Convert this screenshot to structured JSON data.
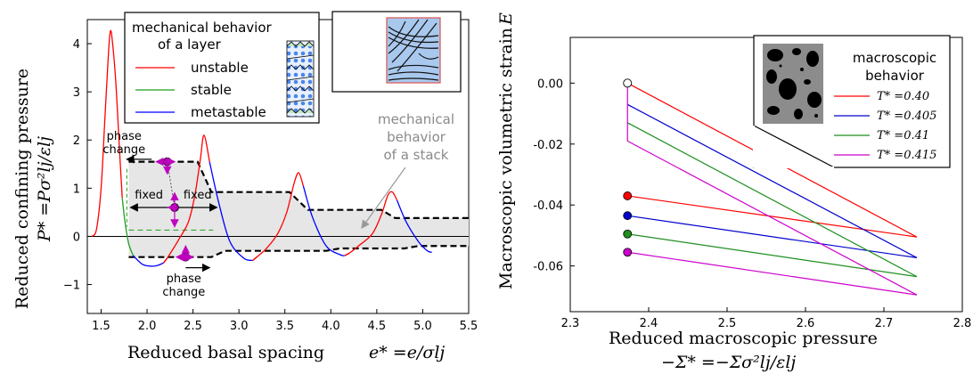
{
  "chart_data": [
    {
      "type": "line",
      "xlabel": "Reduced basal spacing",
      "xlabel_math": "e* =e/σlj",
      "ylabel_line1": "Reduced confining pressure",
      "ylabel_line2": "P* =Pσ²lj/εlj",
      "xlim": [
        1.35,
        5.5
      ],
      "ylim": [
        -1.6,
        4.5
      ],
      "xticks": [
        "1.5",
        "2.0",
        "2.5",
        "3.0",
        "3.5",
        "4.0",
        "4.5",
        "5.0",
        "5.5"
      ],
      "xtick_values": [
        1.5,
        2.0,
        2.5,
        3.0,
        3.5,
        4.0,
        4.5,
        5.0,
        5.5
      ],
      "yticks": [
        "−1",
        "0",
        "1",
        "2",
        "3",
        "4"
      ],
      "ytick_values": [
        -1,
        0,
        1,
        2,
        3,
        4
      ],
      "legend": {
        "title_line1": "mechanical behavior",
        "title_line2": "of a layer",
        "entries": [
          "unstable",
          "stable",
          "metastable"
        ],
        "colors": [
          "#ff0000",
          "#1f9e1f",
          "#0000ff"
        ],
        "placement": "top-center"
      },
      "inset_label": [
        "mechanical",
        "behavior",
        "of a stack"
      ],
      "annotations": {
        "phase_change_top": [
          "phase",
          "change"
        ],
        "phase_change_bottom": [
          "phase",
          "change"
        ],
        "fixed_left": "fixed",
        "fixed_right": "fixed"
      },
      "series": [
        {
          "name": "unstable",
          "color": "#ff0000",
          "x": [
            1.4,
            1.45,
            1.5,
            1.54,
            1.58,
            1.6,
            1.62,
            1.66,
            1.7,
            1.73,
            2.18,
            2.22,
            2.27,
            2.35,
            2.45,
            2.52,
            2.58,
            2.62,
            2.68,
            3.15,
            3.2,
            3.3,
            3.42,
            3.52,
            3.6,
            3.65,
            3.7,
            4.15,
            4.2,
            4.3,
            4.45,
            4.55,
            4.62,
            4.67,
            4.72
          ],
          "y": [
            0.0,
            0.15,
            1.0,
            2.4,
            3.8,
            4.25,
            4.1,
            3.2,
            1.8,
            0.8,
            -0.55,
            -0.45,
            -0.3,
            -0.05,
            0.3,
            0.85,
            1.6,
            2.1,
            1.55,
            -0.5,
            -0.42,
            -0.25,
            0.05,
            0.5,
            1.1,
            1.32,
            1.05,
            -0.4,
            -0.35,
            -0.2,
            0.05,
            0.45,
            0.85,
            0.92,
            0.75
          ]
        },
        {
          "name": "stable",
          "color": "#1f9e1f",
          "x": [
            1.73,
            1.76,
            1.8,
            1.85
          ],
          "y": [
            0.8,
            0.3,
            -0.15,
            -0.4
          ]
        },
        {
          "name": "metastable",
          "color": "#0000ff",
          "x": [
            1.85,
            1.95,
            2.05,
            2.12,
            2.18,
            2.68,
            2.78,
            2.9,
            3.05,
            3.15,
            3.7,
            3.8,
            3.95,
            4.1,
            4.15,
            4.72,
            4.82,
            4.95,
            5.05,
            5.1
          ],
          "y": [
            -0.4,
            -0.58,
            -0.62,
            -0.6,
            -0.55,
            1.55,
            0.7,
            -0.1,
            -0.45,
            -0.5,
            1.05,
            0.4,
            -0.2,
            -0.38,
            -0.4,
            0.75,
            0.3,
            -0.1,
            -0.3,
            -0.33
          ]
        }
      ],
      "stack_envelope": {
        "upper": [
          [
            1.8,
            1.55
          ],
          [
            2.55,
            1.55
          ],
          [
            2.7,
            0.92
          ],
          [
            3.55,
            0.92
          ],
          [
            3.75,
            0.55
          ],
          [
            4.55,
            0.55
          ],
          [
            4.7,
            0.38
          ],
          [
            5.5,
            0.38
          ]
        ],
        "lower": [
          [
            1.8,
            -0.43
          ],
          [
            2.7,
            -0.43
          ],
          [
            2.85,
            -0.3
          ],
          [
            3.95,
            -0.3
          ],
          [
            4.1,
            -0.25
          ],
          [
            4.8,
            -0.25
          ],
          [
            4.95,
            -0.2
          ],
          [
            5.5,
            -0.2
          ]
        ]
      }
    },
    {
      "type": "line",
      "xlabel": "Reduced macroscopic pressure",
      "xlabel_math": "−Σ* =−Σσ²lj/εlj",
      "ylabel": "Macroscopic volumetric strain",
      "ylabel_var": "E",
      "xlim": [
        2.3,
        2.8
      ],
      "ylim": [
        -0.075,
        0.015
      ],
      "xticks": [
        "2.3",
        "2.4",
        "2.5",
        "2.6",
        "2.7",
        "2.8"
      ],
      "xtick_values": [
        2.3,
        2.4,
        2.5,
        2.6,
        2.7,
        2.8
      ],
      "yticks": [
        "0.00",
        "-0.02",
        "-0.04",
        "-0.06"
      ],
      "ytick_values": [
        0.0,
        -0.02,
        -0.04,
        -0.06
      ],
      "legend": {
        "title_line1": "macroscopic",
        "title_line2": "behavior",
        "placement": "top-right"
      },
      "series": [
        {
          "name": "T* =0.40",
          "color": "#ff0000",
          "start": [
            2.373,
            0.0
          ],
          "x": [
            2.373,
            2.742
          ],
          "y": [
            -0.037,
            -0.0505
          ],
          "marker_y": -0.037
        },
        {
          "name": "T* =0.405",
          "color": "#0000cc",
          "start": [
            2.373,
            -0.007
          ],
          "x": [
            2.373,
            2.742
          ],
          "y": [
            -0.0435,
            -0.0573
          ],
          "marker_y": -0.0435
        },
        {
          "name": "T* =0.41",
          "color": "#1f8f1f",
          "start": [
            2.373,
            -0.013
          ],
          "x": [
            2.373,
            2.742
          ],
          "y": [
            -0.0495,
            -0.0635
          ],
          "marker_y": -0.0495
        },
        {
          "name": "T* =0.415",
          "color": "#cc00cc",
          "start": [
            2.373,
            -0.019
          ],
          "x": [
            2.373,
            2.742
          ],
          "y": [
            -0.0555,
            -0.0695
          ],
          "marker_y": -0.0555
        }
      ],
      "open_marker": [
        2.373,
        0.0
      ]
    }
  ]
}
